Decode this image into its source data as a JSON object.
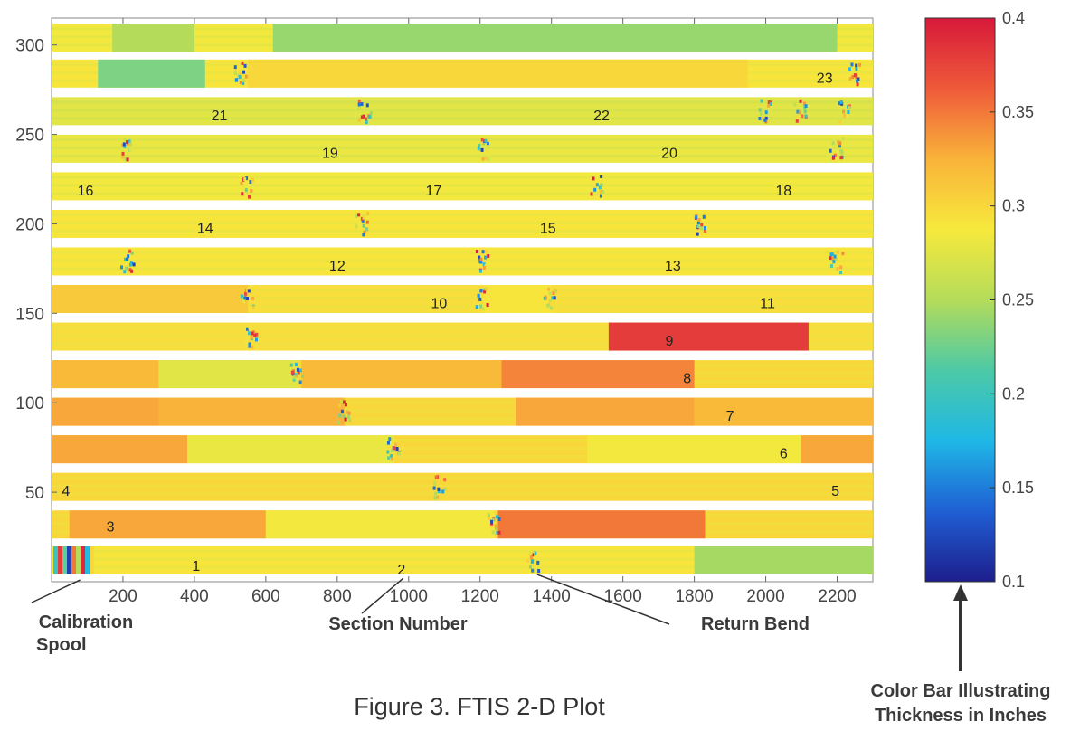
{
  "chart_data": {
    "type": "heatmap",
    "caption": "Figure 3.  FTIS 2-D Plot",
    "xlim": [
      0,
      2300
    ],
    "ylim": [
      0,
      315
    ],
    "x_ticks": [
      200,
      400,
      600,
      800,
      1000,
      1200,
      1400,
      1600,
      1800,
      2000,
      2200
    ],
    "x_tick_labels": [
      "200",
      "400",
      "600",
      "800",
      "1000",
      "1200",
      "1400",
      "1600",
      "1800",
      "2000",
      "2200"
    ],
    "y_ticks": [
      50,
      100,
      150,
      200,
      250,
      300
    ],
    "y_tick_labels": [
      "50",
      "100",
      "150",
      "200",
      "250",
      "300"
    ],
    "colorbar": {
      "min": 0.1,
      "max": 0.4,
      "ticks": [
        0.1,
        0.15,
        0.2,
        0.25,
        0.3,
        0.35,
        0.4
      ],
      "tick_labels": [
        "0.1",
        "0.15",
        "0.2",
        "0.25",
        "0.3",
        "0.35",
        "0.4"
      ],
      "colormap": [
        "#1e1e8c",
        "#1f5fd4",
        "#1fb8e6",
        "#4cc9a6",
        "#b4dc5a",
        "#f7e93c",
        "#f9b33a",
        "#ef5a3a",
        "#d7193a"
      ],
      "title_line1": "Color Bar Illustrating",
      "title_line2": "Thickness in Inches"
    },
    "rows": [
      {
        "y": 12,
        "value": 0.29,
        "return_bend_x": [
          1350
        ],
        "segments": [
          {
            "x0": 1800,
            "x1": 2300,
            "value": 0.245
          }
        ]
      },
      {
        "y": 32,
        "value": 0.3,
        "return_bend_x": [
          1240
        ],
        "segments": [
          {
            "x0": 50,
            "x1": 600,
            "value": 0.33
          },
          {
            "x0": 600,
            "x1": 1240,
            "value": 0.285
          },
          {
            "x0": 1250,
            "x1": 1830,
            "value": 0.35
          }
        ]
      },
      {
        "y": 53,
        "value": 0.3,
        "return_bend_x": [
          1090
        ],
        "segments": []
      },
      {
        "y": 74,
        "value": 0.3,
        "return_bend_x": [
          960
        ],
        "segments": [
          {
            "x0": 0,
            "x1": 380,
            "value": 0.33
          },
          {
            "x0": 380,
            "x1": 960,
            "value": 0.28
          },
          {
            "x0": 1500,
            "x1": 2100,
            "value": 0.285
          },
          {
            "x0": 2100,
            "x1": 2300,
            "value": 0.33
          }
        ]
      },
      {
        "y": 95,
        "value": 0.3,
        "return_bend_x": [
          820
        ],
        "segments": [
          {
            "x0": 0,
            "x1": 300,
            "value": 0.33
          },
          {
            "x0": 300,
            "x1": 820,
            "value": 0.325
          },
          {
            "x0": 1300,
            "x1": 1800,
            "value": 0.33
          },
          {
            "x0": 1800,
            "x1": 2300,
            "value": 0.32
          }
        ]
      },
      {
        "y": 116,
        "value": 0.3,
        "return_bend_x": [
          690
        ],
        "segments": [
          {
            "x0": 0,
            "x1": 300,
            "value": 0.32
          },
          {
            "x0": 300,
            "x1": 690,
            "value": 0.275
          },
          {
            "x0": 700,
            "x1": 1260,
            "value": 0.32
          },
          {
            "x0": 1260,
            "x1": 1800,
            "value": 0.345
          }
        ]
      },
      {
        "y": 137,
        "value": 0.295,
        "return_bend_x": [
          560
        ],
        "segments": [
          {
            "x0": 1560,
            "x1": 2120,
            "value": 0.38
          }
        ]
      },
      {
        "y": 158,
        "value": 0.295,
        "return_bend_x": [
          550,
          1210,
          1400
        ],
        "segments": [
          {
            "x0": 0,
            "x1": 550,
            "value": 0.31
          },
          {
            "x0": 1210,
            "x1": 1400,
            "value": 0.29
          }
        ]
      },
      {
        "y": 179,
        "value": 0.29,
        "return_bend_x": [
          215,
          1210,
          2200
        ],
        "segments": []
      },
      {
        "y": 200,
        "value": 0.29,
        "return_bend_x": [
          870,
          1820
        ],
        "segments": []
      },
      {
        "y": 221,
        "value": 0.285,
        "return_bend_x": [
          550,
          1530
        ],
        "segments": []
      },
      {
        "y": 242,
        "value": 0.28,
        "return_bend_x": [
          215,
          1210,
          2200
        ],
        "segments": []
      },
      {
        "y": 263,
        "value": 0.275,
        "return_bend_x": [
          880,
          2000,
          2100,
          2220
        ],
        "segments": []
      },
      {
        "y": 284,
        "value": 0.29,
        "return_bend_x": [
          530,
          2250
        ],
        "segments": [
          {
            "x0": 130,
            "x1": 430,
            "value": 0.23
          },
          {
            "x0": 550,
            "x1": 1950,
            "value": 0.3
          }
        ]
      },
      {
        "y": 304,
        "value": 0.285,
        "return_bend_x": [],
        "segments": [
          {
            "x0": 170,
            "x1": 400,
            "value": 0.25
          },
          {
            "x0": 620,
            "x1": 2200,
            "value": 0.24
          }
        ]
      }
    ],
    "section_labels": [
      {
        "text": "1",
        "x": 405,
        "y": 9
      },
      {
        "text": "2",
        "x": 980,
        "y": 7
      },
      {
        "text": "3",
        "x": 165,
        "y": 31
      },
      {
        "text": "4",
        "x": 40,
        "y": 51
      },
      {
        "text": "5",
        "x": 2195,
        "y": 51
      },
      {
        "text": "6",
        "x": 2050,
        "y": 72
      },
      {
        "text": "7",
        "x": 1900,
        "y": 93
      },
      {
        "text": "8",
        "x": 1780,
        "y": 114
      },
      {
        "text": "9",
        "x": 1730,
        "y": 135
      },
      {
        "text": "10",
        "x": 1085,
        "y": 156
      },
      {
        "text": "11",
        "x": 2005,
        "y": 156
      },
      {
        "text": "12",
        "x": 800,
        "y": 177
      },
      {
        "text": "13",
        "x": 1740,
        "y": 177
      },
      {
        "text": "14",
        "x": 430,
        "y": 198
      },
      {
        "text": "15",
        "x": 1390,
        "y": 198
      },
      {
        "text": "16",
        "x": 95,
        "y": 219
      },
      {
        "text": "17",
        "x": 1070,
        "y": 219
      },
      {
        "text": "18",
        "x": 2050,
        "y": 219
      },
      {
        "text": "19",
        "x": 780,
        "y": 240
      },
      {
        "text": "20",
        "x": 1730,
        "y": 240
      },
      {
        "text": "21",
        "x": 470,
        "y": 261
      },
      {
        "text": "22",
        "x": 1540,
        "y": 261
      },
      {
        "text": "23",
        "x": 2165,
        "y": 282
      }
    ],
    "annotations": [
      {
        "line1": "Calibration",
        "line2": "Spool",
        "target_x": 80,
        "target_y": 1
      },
      {
        "line1": "Section Number",
        "line2": "",
        "target_x": 985,
        "target_y": 2
      },
      {
        "line1": "Return Bend",
        "line2": "",
        "target_x": 1360,
        "target_y": 4
      }
    ]
  }
}
